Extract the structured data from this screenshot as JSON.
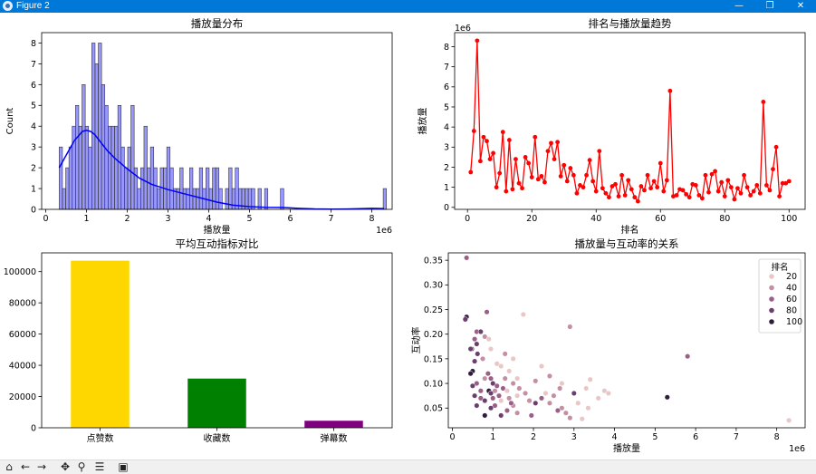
{
  "window": {
    "title": "Figure 2",
    "minimize_glyph": "—",
    "maximize_glyph": "❐",
    "close_glyph": "✕"
  },
  "toolbar": {
    "home_icon": "home-icon",
    "back_icon": "back-arrow-icon",
    "forward_icon": "forward-arrow-icon",
    "pan_icon": "pan-icon",
    "zoom_icon": "zoom-icon",
    "configure_icon": "configure-subplots-icon",
    "save_icon": "save-icon"
  },
  "chart_data": [
    {
      "type": "bar",
      "title": "播放量分布",
      "xlabel": "播放量",
      "ylabel": "Count",
      "x_offset_text": "1e6",
      "xlim": [
        -0.1,
        8.5
      ],
      "ylim": [
        0,
        8.5
      ],
      "xticks": [
        0,
        1,
        2,
        3,
        4,
        5,
        6,
        7,
        8
      ],
      "yticks": [
        0,
        1,
        2,
        3,
        4,
        5,
        6,
        7,
        8
      ],
      "bar_color": "#6b6bff",
      "kde_color": "#0000ff",
      "bin_width": 0.08,
      "bin_start": 0.33,
      "counts": [
        3,
        1,
        2,
        3,
        4,
        5,
        4,
        6,
        4,
        3,
        8,
        7,
        8,
        6,
        5,
        4,
        4,
        4,
        5,
        3,
        2,
        3,
        5,
        2,
        1,
        2,
        4,
        2,
        3,
        2,
        1,
        2,
        2,
        3,
        2,
        1,
        1,
        2,
        1,
        1,
        2,
        1,
        1,
        2,
        1,
        2,
        1,
        2,
        2,
        1,
        0,
        1,
        2,
        1,
        2,
        1,
        1,
        1,
        1,
        1,
        0,
        0,
        0,
        1,
        0,
        0,
        0,
        0,
        0,
        0,
        0,
        0,
        0,
        0,
        0,
        0,
        0,
        0,
        0,
        0,
        0,
        0,
        0,
        0,
        0,
        0,
        0,
        0,
        0,
        0,
        0,
        0,
        0,
        0,
        0,
        0,
        0,
        0,
        0,
        0,
        0,
        0,
        0,
        0,
        0,
        0,
        0,
        0,
        0,
        0,
        0,
        0,
        0,
        0,
        0,
        0,
        0,
        0,
        0,
        0
      ],
      "kde": {
        "x": [
          0.33,
          0.5,
          0.7,
          0.9,
          1.0,
          1.1,
          1.2,
          1.3,
          1.5,
          1.7,
          2.0,
          2.3,
          2.6,
          3.0,
          3.4,
          3.8,
          4.2,
          4.6,
          5.0,
          5.4,
          5.8,
          6.2,
          6.6,
          7.0,
          7.5,
          8.0,
          8.3
        ],
        "y": [
          2.0,
          2.6,
          3.3,
          3.75,
          3.8,
          3.75,
          3.6,
          3.35,
          2.85,
          2.45,
          1.95,
          1.5,
          1.2,
          0.95,
          0.75,
          0.55,
          0.35,
          0.2,
          0.13,
          0.1,
          0.09,
          0.05,
          0.02,
          0.01,
          0.02,
          0.05,
          0.04
        ]
      },
      "outliers": [
        {
          "x": 5.25,
          "count": 1
        },
        {
          "x": 5.8,
          "count": 1
        },
        {
          "x": 8.32,
          "count": 1
        }
      ]
    },
    {
      "type": "line",
      "title": "排名与播放量趋势",
      "xlabel": "排名",
      "ylabel": "播放量",
      "y_offset_text": "1e6",
      "xlim": [
        -4,
        105
      ],
      "ylim": [
        -0.1,
        8.7
      ],
      "xticks": [
        0,
        20,
        40,
        60,
        80,
        100
      ],
      "yticks": [
        0,
        1,
        2,
        3,
        4,
        5,
        6,
        7,
        8
      ],
      "color": "#ff0000",
      "x": [
        1,
        2,
        3,
        4,
        5,
        6,
        7,
        8,
        9,
        10,
        11,
        12,
        13,
        14,
        15,
        16,
        17,
        18,
        19,
        20,
        21,
        22,
        23,
        24,
        25,
        26,
        27,
        28,
        29,
        30,
        31,
        32,
        33,
        34,
        35,
        36,
        37,
        38,
        39,
        40,
        41,
        42,
        43,
        44,
        45,
        46,
        47,
        48,
        49,
        50,
        51,
        52,
        53,
        54,
        55,
        56,
        57,
        58,
        59,
        60,
        61,
        62,
        63,
        64,
        65,
        66,
        67,
        68,
        69,
        70,
        71,
        72,
        73,
        74,
        75,
        76,
        77,
        78,
        79,
        80,
        81,
        82,
        83,
        84,
        85,
        86,
        87,
        88,
        89,
        90,
        91,
        92,
        93,
        94,
        95,
        96,
        97,
        98,
        99,
        100
      ],
      "y": [
        1.75,
        3.8,
        8.3,
        2.3,
        3.5,
        3.3,
        2.4,
        2.7,
        1.0,
        1.7,
        3.75,
        0.8,
        3.35,
        0.9,
        2.4,
        1.2,
        0.95,
        2.5,
        2.2,
        1.5,
        3.5,
        1.4,
        1.55,
        1.25,
        2.8,
        3.2,
        2.4,
        3.25,
        1.55,
        2.1,
        1.3,
        1.95,
        1.6,
        0.7,
        1.1,
        1.0,
        1.6,
        2.35,
        1.3,
        0.8,
        2.8,
        0.95,
        0.7,
        0.5,
        1.05,
        1.15,
        0.55,
        1.6,
        0.6,
        1.35,
        0.9,
        0.5,
        0.3,
        1.05,
        0.85,
        1.6,
        0.95,
        1.3,
        1.0,
        2.2,
        0.8,
        1.35,
        5.8,
        0.55,
        0.6,
        0.9,
        0.85,
        0.65,
        0.5,
        1.15,
        1.1,
        0.6,
        0.45,
        1.6,
        0.75,
        1.65,
        1.8,
        0.8,
        1.25,
        0.55,
        1.35,
        1.0,
        0.4,
        0.95,
        0.7,
        1.6,
        1.0,
        0.6,
        0.8,
        1.1,
        0.7,
        5.25,
        1.1,
        0.85,
        1.9,
        3.0,
        0.55,
        1.2,
        1.2,
        1.3
      ]
    },
    {
      "type": "bar",
      "title": "平均互动指标对比",
      "categories": [
        "点赞数",
        "收藏数",
        "弹幕数"
      ],
      "values": [
        107000,
        31500,
        4500
      ],
      "colors": [
        "#ffd700",
        "#008000",
        "#800080"
      ],
      "ylim": [
        0,
        112000
      ],
      "yticks": [
        0,
        20000,
        40000,
        60000,
        80000,
        100000
      ],
      "xlabel": "",
      "ylabel": ""
    },
    {
      "type": "scatter",
      "title": "播放量与互动率的关系",
      "xlabel": "播放量",
      "ylabel": "互动率",
      "x_offset_text": "1e6",
      "xlim": [
        -0.1,
        8.7
      ],
      "ylim": [
        0.01,
        0.365
      ],
      "xticks": [
        0,
        1,
        2,
        3,
        4,
        5,
        6,
        7,
        8
      ],
      "yticks": [
        0.05,
        0.1,
        0.15,
        0.2,
        0.25,
        0.3,
        0.35
      ],
      "legend": {
        "title": "排名",
        "entries": [
          "20",
          "40",
          "60",
          "80",
          "100"
        ],
        "position": "top-right",
        "colors": [
          "#e8c7c6",
          "#c48ea3",
          "#995f87",
          "#6a3f6e",
          "#2d1e3e"
        ]
      },
      "points": [
        {
          "x": 0.35,
          "y": 0.355,
          "r": 55
        },
        {
          "x": 0.35,
          "y": 0.235,
          "r": 90
        },
        {
          "x": 0.32,
          "y": 0.23,
          "r": 80
        },
        {
          "x": 0.85,
          "y": 0.245,
          "r": 55
        },
        {
          "x": 1.75,
          "y": 0.24,
          "r": 15
        },
        {
          "x": 2.9,
          "y": 0.215,
          "r": 40
        },
        {
          "x": 0.6,
          "y": 0.205,
          "r": 65
        },
        {
          "x": 0.7,
          "y": 0.205,
          "r": 70
        },
        {
          "x": 0.8,
          "y": 0.195,
          "r": 30
        },
        {
          "x": 0.55,
          "y": 0.19,
          "r": 60
        },
        {
          "x": 0.9,
          "y": 0.19,
          "r": 25
        },
        {
          "x": 0.6,
          "y": 0.18,
          "r": 75
        },
        {
          "x": 0.48,
          "y": 0.17,
          "r": 85
        },
        {
          "x": 0.95,
          "y": 0.17,
          "r": 20
        },
        {
          "x": 1.3,
          "y": 0.16,
          "r": 30
        },
        {
          "x": 5.8,
          "y": 0.155,
          "r": 63
        },
        {
          "x": 1.5,
          "y": 0.15,
          "r": 10
        },
        {
          "x": 0.75,
          "y": 0.15,
          "r": 40
        },
        {
          "x": 0.55,
          "y": 0.145,
          "r": 70
        },
        {
          "x": 1.1,
          "y": 0.14,
          "r": 15
        },
        {
          "x": 1.2,
          "y": 0.135,
          "r": 10
        },
        {
          "x": 2.2,
          "y": 0.135,
          "r": 20
        },
        {
          "x": 0.5,
          "y": 0.125,
          "r": 90
        },
        {
          "x": 1.4,
          "y": 0.125,
          "r": 25
        },
        {
          "x": 0.45,
          "y": 0.12,
          "r": 95
        },
        {
          "x": 2.4,
          "y": 0.115,
          "r": 35
        },
        {
          "x": 0.8,
          "y": 0.11,
          "r": 45
        },
        {
          "x": 0.95,
          "y": 0.11,
          "r": 55
        },
        {
          "x": 1.3,
          "y": 0.11,
          "r": 30
        },
        {
          "x": 1.6,
          "y": 0.11,
          "r": 20
        },
        {
          "x": 3.4,
          "y": 0.108,
          "r": 5
        },
        {
          "x": 2.05,
          "y": 0.105,
          "r": 40
        },
        {
          "x": 0.6,
          "y": 0.1,
          "r": 60
        },
        {
          "x": 1.0,
          "y": 0.1,
          "r": 75
        },
        {
          "x": 1.5,
          "y": 0.1,
          "r": 45
        },
        {
          "x": 2.7,
          "y": 0.1,
          "r": 20
        },
        {
          "x": 0.5,
          "y": 0.095,
          "r": 85
        },
        {
          "x": 1.1,
          "y": 0.095,
          "r": 65
        },
        {
          "x": 1.25,
          "y": 0.09,
          "r": 50
        },
        {
          "x": 1.65,
          "y": 0.09,
          "r": 35
        },
        {
          "x": 2.65,
          "y": 0.09,
          "r": 45
        },
        {
          "x": 3.3,
          "y": 0.09,
          "r": 8
        },
        {
          "x": 0.7,
          "y": 0.085,
          "r": 55
        },
        {
          "x": 0.9,
          "y": 0.085,
          "r": 95
        },
        {
          "x": 1.05,
          "y": 0.085,
          "r": 40
        },
        {
          "x": 1.35,
          "y": 0.085,
          "r": 25
        },
        {
          "x": 3.75,
          "y": 0.085,
          "r": 10
        },
        {
          "x": 0.95,
          "y": 0.08,
          "r": 70
        },
        {
          "x": 1.8,
          "y": 0.08,
          "r": 30
        },
        {
          "x": 2.3,
          "y": 0.08,
          "r": 15
        },
        {
          "x": 3.0,
          "y": 0.08,
          "r": 88
        },
        {
          "x": 3.85,
          "y": 0.08,
          "r": 12
        },
        {
          "x": 0.55,
          "y": 0.075,
          "r": 80
        },
        {
          "x": 1.15,
          "y": 0.075,
          "r": 60
        },
        {
          "x": 1.6,
          "y": 0.075,
          "r": 20
        },
        {
          "x": 2.5,
          "y": 0.075,
          "r": 45
        },
        {
          "x": 0.7,
          "y": 0.07,
          "r": 65
        },
        {
          "x": 1.0,
          "y": 0.07,
          "r": 50
        },
        {
          "x": 1.4,
          "y": 0.07,
          "r": 35
        },
        {
          "x": 2.2,
          "y": 0.07,
          "r": 55
        },
        {
          "x": 3.6,
          "y": 0.07,
          "r": 15
        },
        {
          "x": 5.3,
          "y": 0.072,
          "r": 90
        },
        {
          "x": 0.8,
          "y": 0.065,
          "r": 75
        },
        {
          "x": 1.2,
          "y": 0.065,
          "r": 25
        },
        {
          "x": 1.9,
          "y": 0.065,
          "r": 40
        },
        {
          "x": 2.05,
          "y": 0.06,
          "r": 70
        },
        {
          "x": 2.4,
          "y": 0.06,
          "r": 30
        },
        {
          "x": 3.1,
          "y": 0.06,
          "r": 10
        },
        {
          "x": 0.6,
          "y": 0.055,
          "r": 85
        },
        {
          "x": 1.05,
          "y": 0.055,
          "r": 60
        },
        {
          "x": 1.5,
          "y": 0.055,
          "r": 45
        },
        {
          "x": 2.7,
          "y": 0.05,
          "r": 35
        },
        {
          "x": 3.35,
          "y": 0.05,
          "r": 20
        },
        {
          "x": 0.95,
          "y": 0.05,
          "r": 70
        },
        {
          "x": 1.35,
          "y": 0.045,
          "r": 55
        },
        {
          "x": 2.6,
          "y": 0.045,
          "r": 65
        },
        {
          "x": 1.6,
          "y": 0.04,
          "r": 35
        },
        {
          "x": 2.8,
          "y": 0.04,
          "r": 40
        },
        {
          "x": 0.8,
          "y": 0.035,
          "r": 90
        },
        {
          "x": 1.95,
          "y": 0.035,
          "r": 50
        },
        {
          "x": 1.2,
          "y": 0.035,
          "r": 75
        },
        {
          "x": 2.9,
          "y": 0.03,
          "r": 30
        },
        {
          "x": 3.2,
          "y": 0.028,
          "r": 15
        },
        {
          "x": 8.3,
          "y": 0.025,
          "r": 3
        },
        {
          "x": 0.45,
          "y": 0.17,
          "r": 72
        },
        {
          "x": 0.62,
          "y": 0.16,
          "r": 80
        },
        {
          "x": 1.45,
          "y": 0.06,
          "r": 60
        },
        {
          "x": 0.88,
          "y": 0.12,
          "r": 50
        }
      ]
    }
  ]
}
